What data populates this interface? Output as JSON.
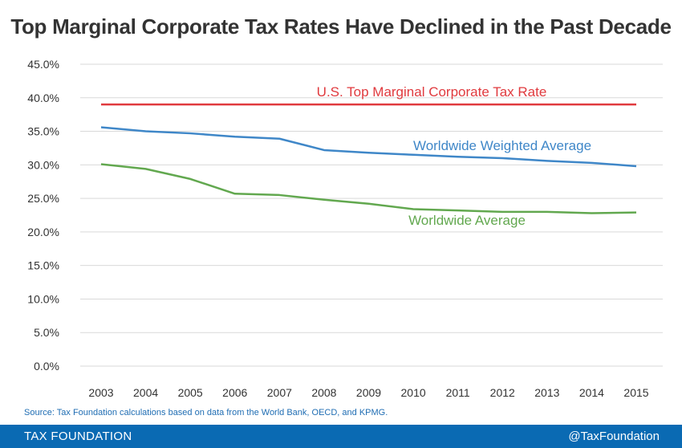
{
  "title": "Top Marginal Corporate Tax Rates Have Declined in the Past Decade",
  "source": "Source: Tax Foundation calculations based on data from the World Bank, OECD, and KPMG.",
  "footer": {
    "brand": "TAX FOUNDATION",
    "handle": "@TaxFoundation"
  },
  "colors": {
    "us": "#e03a3e",
    "weighted": "#3f87c8",
    "average": "#62a84f",
    "footer_bg": "#0a6ab3"
  },
  "chart_data": {
    "type": "line",
    "title": "Top Marginal Corporate Tax Rates Have Declined in the Past Decade",
    "xlabel": "",
    "ylabel": "",
    "x": [
      "2003",
      "2004",
      "2005",
      "2006",
      "2007",
      "2008",
      "2009",
      "2010",
      "2011",
      "2012",
      "2013",
      "2014",
      "2015"
    ],
    "ylim": [
      0,
      45
    ],
    "yticks": [
      "0.0%",
      "5.0%",
      "10.0%",
      "15.0%",
      "20.0%",
      "25.0%",
      "30.0%",
      "35.0%",
      "40.0%",
      "45.0%"
    ],
    "grid": true,
    "series": [
      {
        "name": "U.S. Top Marginal Corporate Tax Rate",
        "color": "#e03a3e",
        "values": [
          39.0,
          39.0,
          39.0,
          39.0,
          39.0,
          39.0,
          39.0,
          39.0,
          39.0,
          39.0,
          39.0,
          39.0,
          39.0
        ]
      },
      {
        "name": "Worldwide Weighted Average",
        "color": "#3f87c8",
        "values": [
          35.6,
          35.0,
          34.7,
          34.2,
          33.9,
          32.2,
          31.8,
          31.5,
          31.2,
          31.0,
          30.6,
          30.3,
          29.8
        ]
      },
      {
        "name": "Worldwide Average",
        "color": "#62a84f",
        "values": [
          30.1,
          29.4,
          27.9,
          25.7,
          25.5,
          24.8,
          24.2,
          23.4,
          23.2,
          23.0,
          23.0,
          22.8,
          22.9
        ]
      }
    ]
  }
}
